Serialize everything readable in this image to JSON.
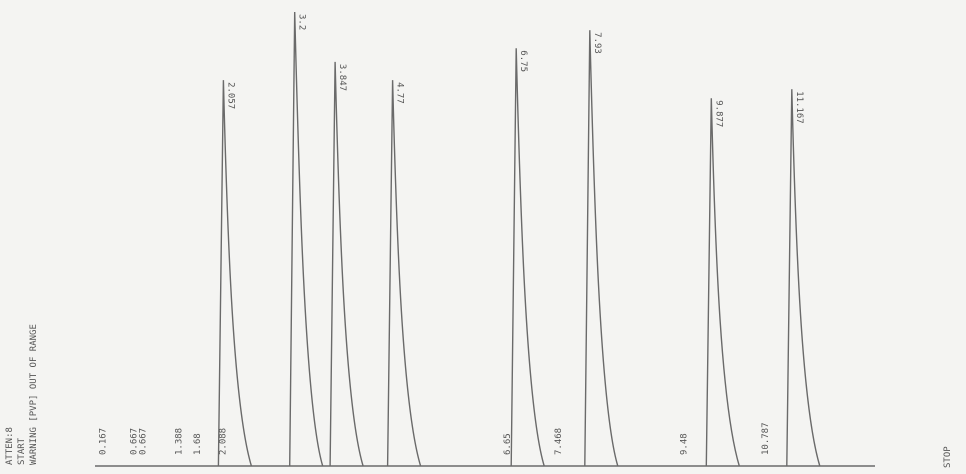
{
  "chart_data": {
    "type": "line",
    "header_lines": [
      "ATTEN:8",
      "START",
      "WARNING [PVP] OUT OF RANGE"
    ],
    "stop_label": "STOP",
    "peaks": [
      {
        "rt": 2.057,
        "label": "2.057",
        "height": 0.85
      },
      {
        "rt": 3.2,
        "label": "3.2",
        "height": 1.0
      },
      {
        "rt": 3.847,
        "label": "3.847",
        "height": 0.89
      },
      {
        "rt": 4.77,
        "label": "4.77",
        "height": 0.85
      },
      {
        "rt": 6.75,
        "label": "6.75",
        "height": 0.92
      },
      {
        "rt": 7.93,
        "label": "7.93",
        "height": 0.96
      },
      {
        "rt": 9.877,
        "label": "9.877",
        "height": 0.81
      },
      {
        "rt": 11.167,
        "label": "11.167",
        "height": 0.83
      }
    ],
    "event_marks": [
      {
        "label": "0.167",
        "position": 0.167
      },
      {
        "label": "0.667",
        "position": 0.667
      },
      {
        "label": "0.667",
        "position": 0.667
      },
      {
        "label": "1.388",
        "position": 1.388
      },
      {
        "label": "1.68",
        "position": 1.68
      },
      {
        "label": "2.088",
        "position": 2.088
      },
      {
        "label": "6.65",
        "position": 6.65
      },
      {
        "label": "7.468",
        "position": 7.468
      },
      {
        "label": "9.48",
        "position": 9.48
      },
      {
        "label": "10.787",
        "position": 10.787
      }
    ],
    "xlim": [
      0,
      12.5
    ],
    "ylim": [
      0,
      1
    ],
    "grid": false,
    "colors": {
      "trace": "#6a6a6a",
      "text": "#555555",
      "background": "#f4f4f2"
    }
  }
}
